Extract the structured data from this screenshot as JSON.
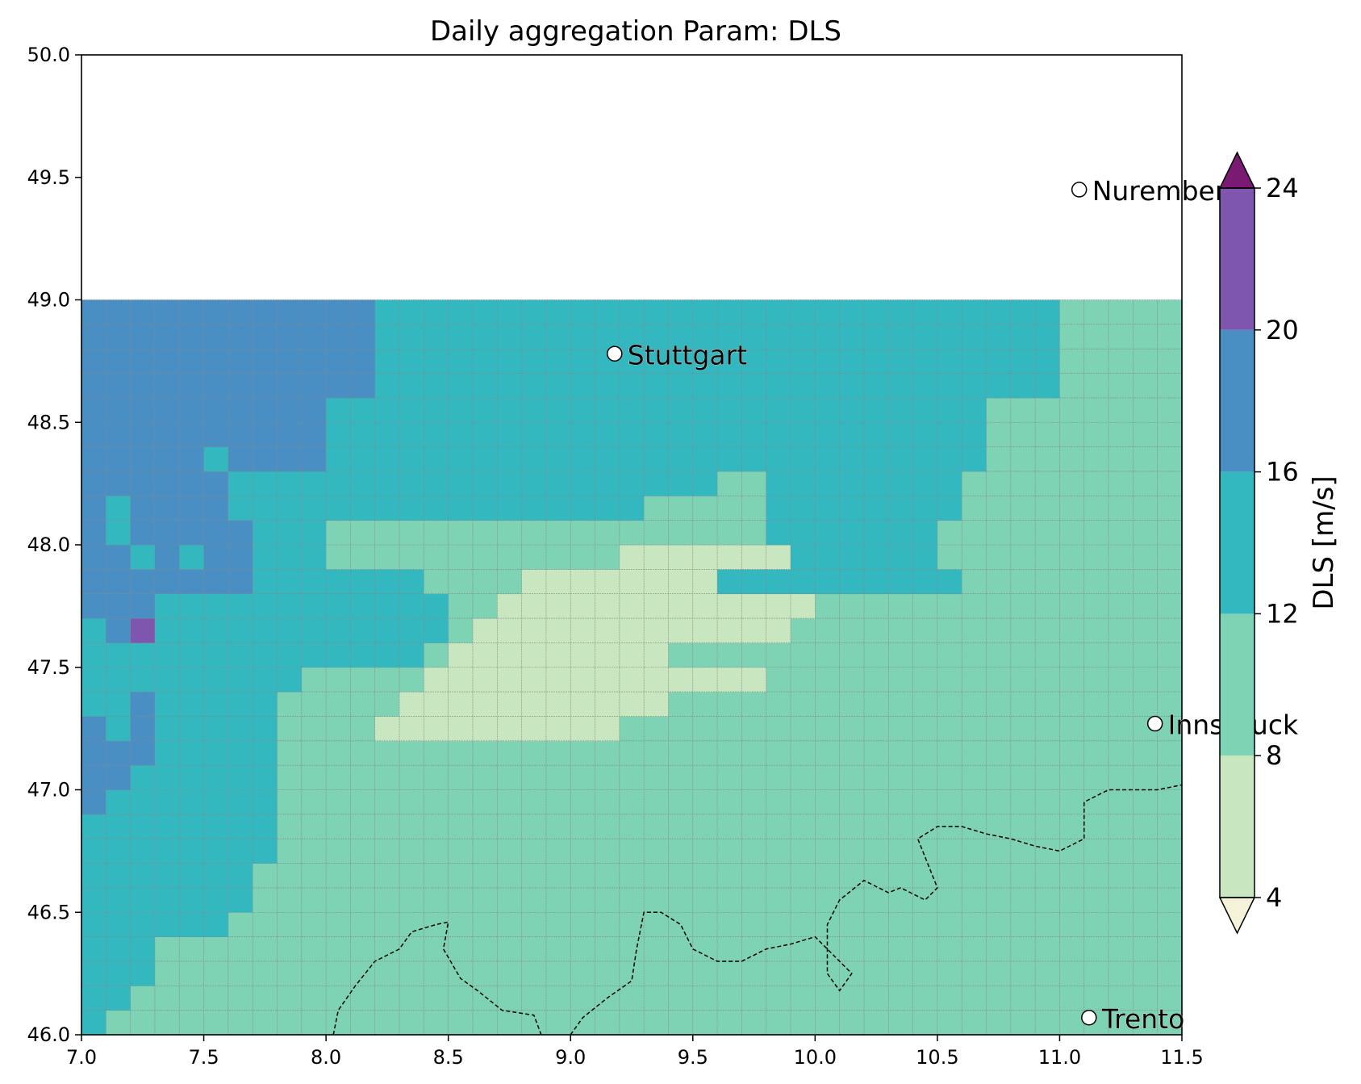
{
  "chart_data": {
    "type": "heatmap",
    "title": "Daily aggregation Param: DLS",
    "xlabel": "",
    "ylabel": "",
    "xlim": [
      7.0,
      11.5
    ],
    "ylim": [
      46.0,
      50.0
    ],
    "xticks": [
      "7.0",
      "7.5",
      "8.0",
      "8.5",
      "9.0",
      "9.5",
      "10.0",
      "10.5",
      "11.0",
      "11.5"
    ],
    "yticks": [
      "46.0",
      "46.5",
      "47.0",
      "47.5",
      "48.0",
      "48.5",
      "49.0",
      "49.5",
      "50.0"
    ],
    "grid": {
      "lon_start": 7.0,
      "lat_start": 46.0,
      "cell_size": 0.1,
      "cols": 45,
      "rows": 30,
      "note_level_codes": "0=[4,8) 1=[8,12) 2=[12,16) 3=[16,20) 4=[20,24)",
      "levels": [
        "200000000000000000000000000000000000000000000",
        "220000000000000000000000000000000000000000000",
        "222000000000000000000000000000000000000000000",
        "222000000000000000000000000000000000000000000",
        "222222000000000000000000000000000000000000000",
        "222222200000000000000000000000000000000000000",
        "222222200000000000000000000000000000000000000",
        "222222220000000000000000000000000000000000000",
        "222222220000000000000000000000000000000000000",
        "322222220000000000000000000000000000000000000",
        "332222220000000000000000000000000000000000000",
        "333222220000000000000000000000000000000000000",
        "323222220000000000000000000000000000000000000",
        "223222220000000000000000000000000000000000000",
        "222222222000000000000000000000000000000000000",
        "222222222222220000000000000000000000000000000",
        "234222222222222000000000000000000000000000000",
        "333222222222222000000000000000000000000000000",
        "333333322222220000000000002222222222000000000",
        "332323322200000000000000000002222220000000000",
        "323333322200000000000000000022222220000000000",
        "323333222222222222222220000022222222000000000",
        "333333222222222222222222220022222222000000000",
        "333332333322222222222222222222222222200000000",
        "333333333322222222222222222222222222200000000",
        "333333333322222222222222222222222222200000000",
        "333333333333222222222222222222222222222200000",
        "333333333333222222222222222222222222222200000",
        "333333333333222222222222222222222222222200000",
        "333333333333222222222222222222222222222200000"
      ],
      "light_cells": [
        "17,17",
        "17,18",
        "17,19",
        "17,20",
        "17,21",
        "17,22",
        "17,23",
        "17,24",
        "17,25",
        "17,26",
        "17,27",
        "17,28",
        "17,29",
        "18,18",
        "18,19",
        "18,20",
        "18,21",
        "18,22",
        "18,23",
        "18,24",
        "18,25",
        "18,26",
        "18,27",
        "18,28",
        "18,29",
        "19,22",
        "19,23",
        "19,24",
        "19,25",
        "19,26",
        "19,27",
        "19,28",
        "19,29",
        "16,16",
        "16,17",
        "16,18",
        "16,19",
        "16,20",
        "16,21",
        "16,22",
        "16,23",
        "16,24",
        "16,25",
        "16,26",
        "16,27",
        "16,28",
        "15,15",
        "15,16",
        "15,17",
        "15,18",
        "15,19",
        "15,20",
        "15,21",
        "15,22",
        "15,23",
        "14,14",
        "14,15",
        "14,16",
        "14,17",
        "14,18",
        "14,19",
        "14,20",
        "14,21",
        "14,22",
        "14,23",
        "14,24",
        "14,25",
        "14,26",
        "14,27",
        "13,13",
        "13,14",
        "13,15",
        "13,16",
        "13,17",
        "13,18",
        "13,19",
        "13,20",
        "13,21",
        "13,22",
        "13,23",
        "12,12",
        "12,13",
        "12,14",
        "12,15",
        "12,16",
        "12,17",
        "12,18",
        "12,19",
        "12,20",
        "12,21"
      ]
    },
    "colorbar": {
      "label": "DLS  [m/s]",
      "ticks": [
        "4",
        "8",
        "12",
        "16",
        "20",
        "24"
      ],
      "bounds": [
        4,
        8,
        12,
        16,
        20,
        24
      ],
      "extend": "both",
      "colors": [
        "#c8e6c0",
        "#7dd3b4",
        "#34b8c0",
        "#4a8fc4",
        "#7f56ad"
      ],
      "under_color": "#f5f2da",
      "over_color": "#7a1a72"
    },
    "cities": [
      {
        "name": "Nuremberg",
        "lon": 11.08,
        "lat": 49.45
      },
      {
        "name": "Stuttgart",
        "lon": 9.18,
        "lat": 48.78
      },
      {
        "name": "Innsbruck",
        "lon": 11.39,
        "lat": 47.27
      },
      {
        "name": "Trento",
        "lon": 11.12,
        "lat": 46.07
      }
    ]
  }
}
